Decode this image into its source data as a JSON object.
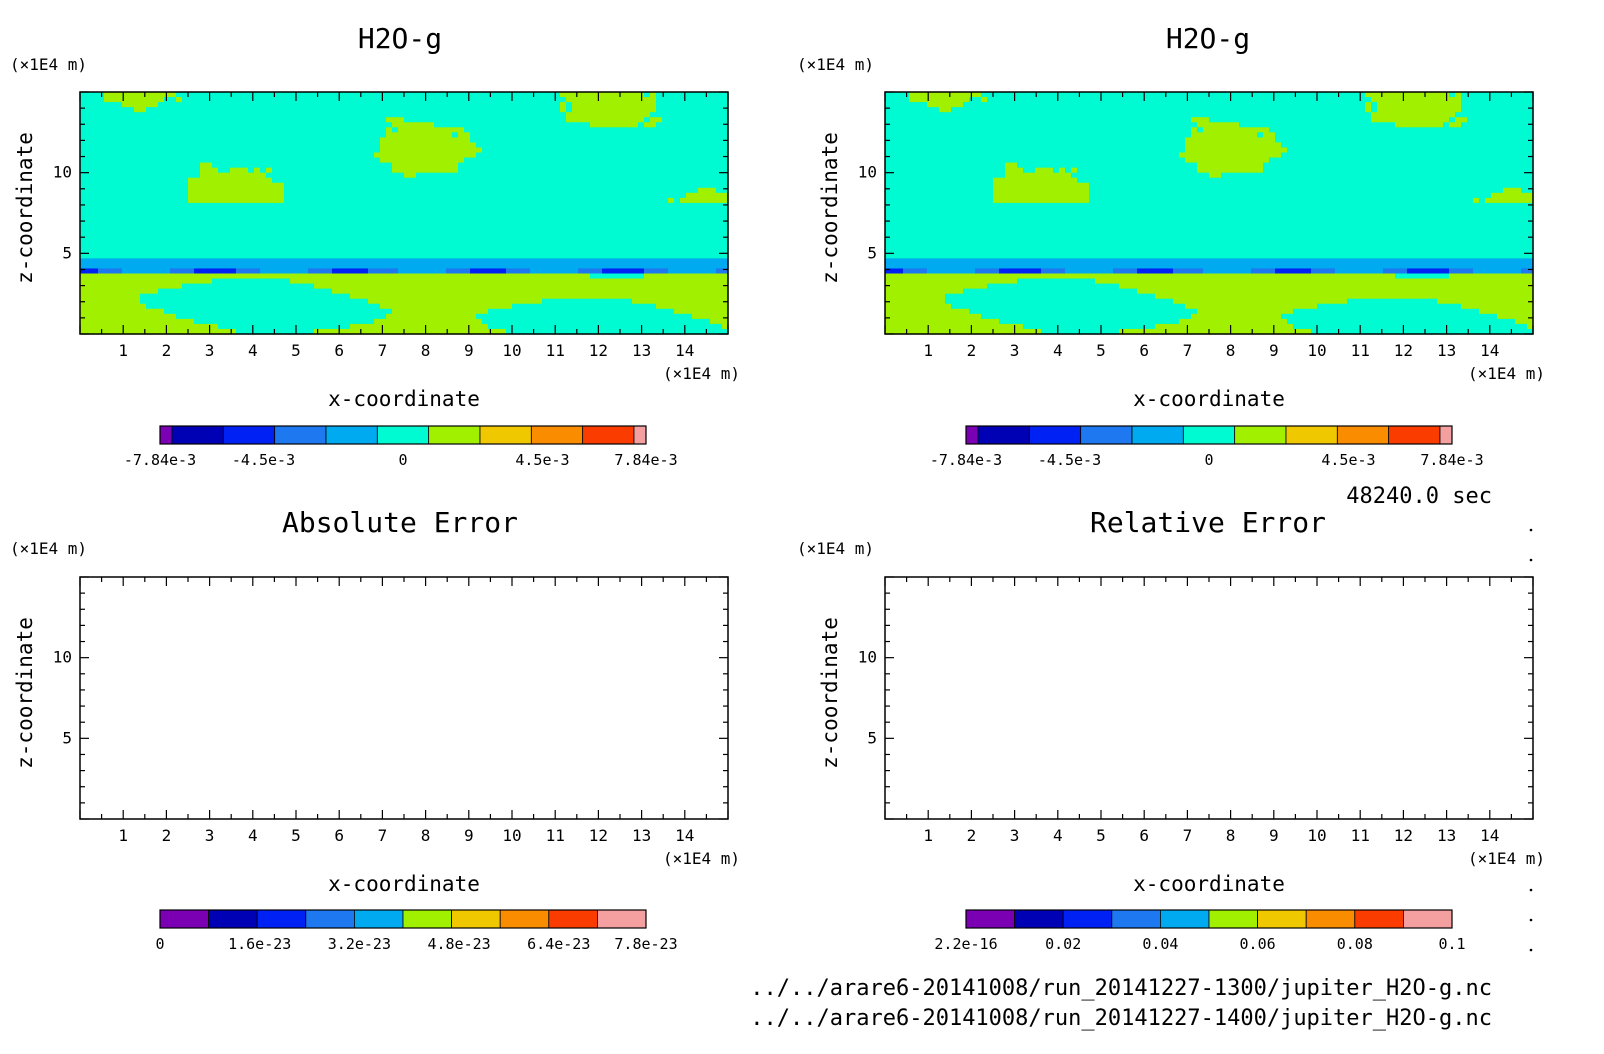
{
  "time_label": "48240.0 sec",
  "files": [
    "../../arare6-20141008/run_20141227-1300/jupiter_H2O-g.nc",
    "../../arare6-20141008/run_20141227-1400/jupiter_H2O-g.nc"
  ],
  "colormap": [
    "#7b00b4",
    "#0000b4",
    "#0021f4",
    "#1e78f0",
    "#00aaf0",
    "#00fad2",
    "#a0f000",
    "#f0c800",
    "#fa8c00",
    "#fa3c00",
    "#f5323c",
    "#f5a0a0"
  ],
  "chart_data": [
    {
      "type": "heatmap",
      "title": "H2O-g",
      "xlabel": "x-coordinate",
      "ylabel": "z-coordinate",
      "x_unit": "(×1E4 m)",
      "y_unit": "(×1E4 m)",
      "xlim": [
        0,
        15
      ],
      "ylim": [
        0,
        15
      ],
      "x_ticks": [
        1,
        2,
        3,
        4,
        5,
        6,
        7,
        8,
        9,
        10,
        11,
        12,
        13,
        14
      ],
      "y_ticks": [
        5,
        10
      ],
      "colorbar": {
        "range": [
          -0.00784,
          0.00784
        ],
        "levels": 11,
        "tick_labels": [
          "-7.84e-3",
          "-4.5e-3",
          "0",
          "4.5e-3",
          "7.84e-3"
        ],
        "tick_values": [
          -0.00784,
          -0.0045,
          0,
          0.0045,
          0.00784
        ]
      },
      "field": "filled"
    },
    {
      "type": "heatmap",
      "title": "H2O-g",
      "xlabel": "x-coordinate",
      "ylabel": "z-coordinate",
      "x_unit": "(×1E4 m)",
      "y_unit": "(×1E4 m)",
      "xlim": [
        0,
        15
      ],
      "ylim": [
        0,
        15
      ],
      "x_ticks": [
        1,
        2,
        3,
        4,
        5,
        6,
        7,
        8,
        9,
        10,
        11,
        12,
        13,
        14
      ],
      "y_ticks": [
        5,
        10
      ],
      "colorbar": {
        "range": [
          -0.00784,
          0.00784
        ],
        "levels": 11,
        "tick_labels": [
          "-7.84e-3",
          "-4.5e-3",
          "0",
          "4.5e-3",
          "7.84e-3"
        ],
        "tick_values": [
          -0.00784,
          -0.0045,
          0,
          0.0045,
          0.00784
        ]
      },
      "field": "filled"
    },
    {
      "type": "heatmap",
      "title": "Absolute Error",
      "xlabel": "x-coordinate",
      "ylabel": "z-coordinate",
      "x_unit": "(×1E4 m)",
      "y_unit": "(×1E4 m)",
      "xlim": [
        0,
        15
      ],
      "ylim": [
        0,
        15
      ],
      "x_ticks": [
        1,
        2,
        3,
        4,
        5,
        6,
        7,
        8,
        9,
        10,
        11,
        12,
        13,
        14
      ],
      "y_ticks": [
        5,
        10
      ],
      "colorbar": {
        "range": [
          0,
          7.8e-23
        ],
        "levels": 10,
        "tick_labels": [
          "0",
          "1.6e-23",
          "3.2e-23",
          "4.8e-23",
          "6.4e-23",
          "7.8e-23"
        ],
        "tick_values": [
          0,
          1.6e-23,
          3.2e-23,
          4.8e-23,
          6.4e-23,
          7.8e-23
        ]
      },
      "field": "blank"
    },
    {
      "type": "heatmap",
      "title": "Relative Error",
      "xlabel": "x-coordinate",
      "ylabel": "z-coordinate",
      "x_unit": "(×1E4 m)",
      "y_unit": "(×1E4 m)",
      "xlim": [
        0,
        15
      ],
      "ylim": [
        0,
        15
      ],
      "x_ticks": [
        1,
        2,
        3,
        4,
        5,
        6,
        7,
        8,
        9,
        10,
        11,
        12,
        13,
        14
      ],
      "y_ticks": [
        5,
        10
      ],
      "colorbar": {
        "range": [
          2.2e-16,
          0.1
        ],
        "levels": 10,
        "tick_labels": [
          "2.2e-16",
          "0.02",
          "0.04",
          "0.06",
          "0.08",
          "0.1"
        ],
        "tick_values": [
          2.2e-16,
          0.02,
          0.04,
          0.06,
          0.08,
          0.1
        ]
      },
      "field": "blank"
    }
  ]
}
